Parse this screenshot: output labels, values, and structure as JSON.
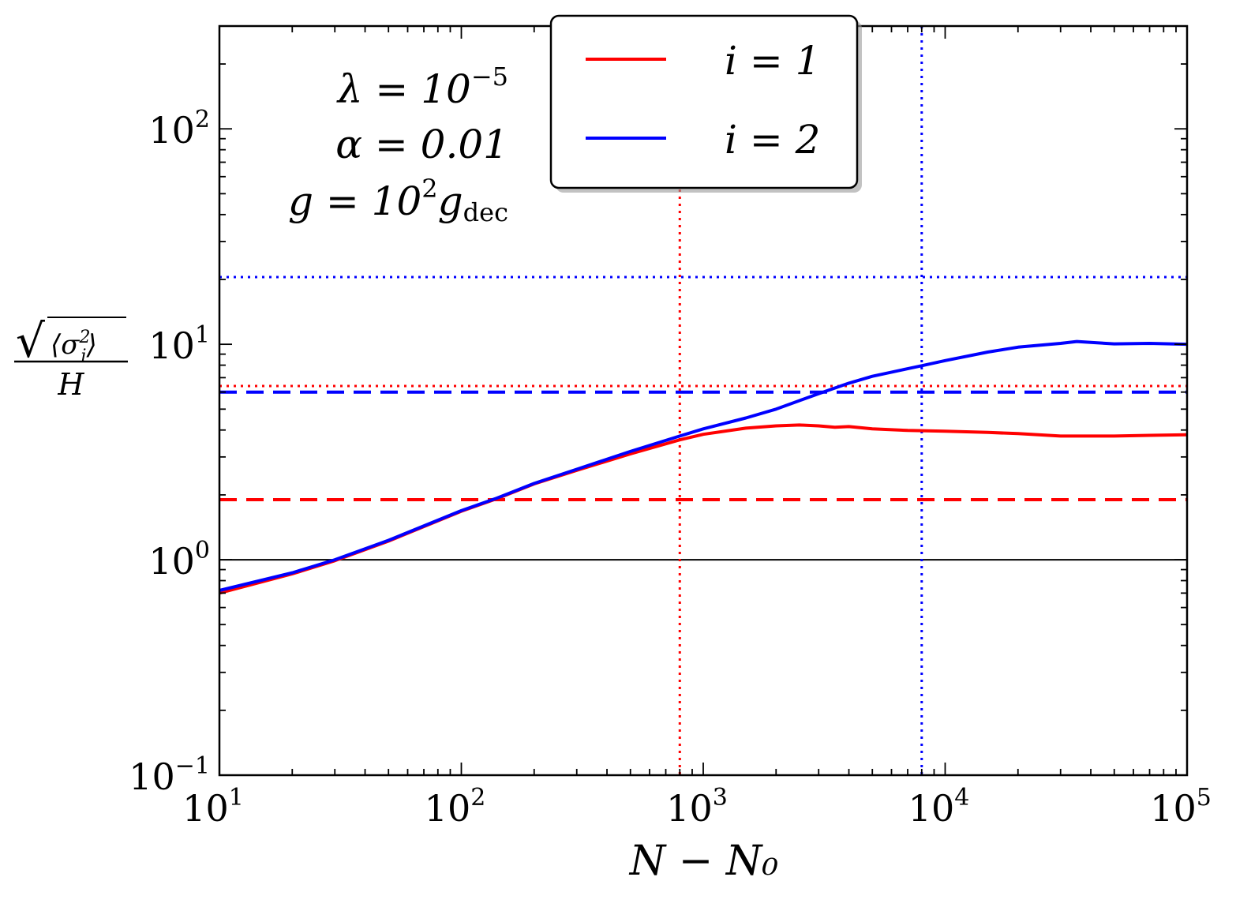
{
  "chart_data": {
    "type": "line",
    "xlabel": "N − N₀",
    "ylabel": "√⟨σᵢ²⟩ / H",
    "ylabel_parts": {
      "numerator_inner": "⟨σ",
      "sup": "2",
      "sub": "i",
      "close": "⟩",
      "denominator": "H"
    },
    "xscale": "log",
    "yscale": "log",
    "xlim": [
      10,
      100000
    ],
    "ylim": [
      0.1,
      300
    ],
    "grid": false,
    "legend_position": "top-center",
    "x_ticks": [
      {
        "value": 10,
        "base": "10",
        "exp": "1"
      },
      {
        "value": 100,
        "base": "10",
        "exp": "2"
      },
      {
        "value": 1000,
        "base": "10",
        "exp": "3"
      },
      {
        "value": 10000,
        "base": "10",
        "exp": "4"
      },
      {
        "value": 100000,
        "base": "10",
        "exp": "5"
      }
    ],
    "y_ticks": [
      {
        "value": 0.1,
        "base": "10",
        "exp": "−1"
      },
      {
        "value": 1,
        "base": "10",
        "exp": "0"
      },
      {
        "value": 10,
        "base": "10",
        "exp": "1"
      },
      {
        "value": 100,
        "base": "10",
        "exp": "2"
      }
    ],
    "annotations": [
      {
        "main": "λ = 10",
        "sup": "−5",
        "sub": ""
      },
      {
        "main": "α = 0.01",
        "sup": "",
        "sub": ""
      },
      {
        "main": "g = 10",
        "sup": "2",
        "tail": "g",
        "sub": "dec"
      }
    ],
    "series": [
      {
        "name": "i = 1",
        "color": "#ff0000",
        "x": [
          10,
          20,
          30,
          50,
          100,
          140,
          200,
          300,
          500,
          800,
          1000,
          1500,
          2000,
          2500,
          3000,
          3500,
          4000,
          5000,
          7000,
          10000,
          15000,
          20000,
          30000,
          50000,
          70000,
          100000
        ],
        "y": [
          0.7,
          0.86,
          0.99,
          1.22,
          1.68,
          1.92,
          2.25,
          2.6,
          3.1,
          3.6,
          3.82,
          4.08,
          4.18,
          4.22,
          4.18,
          4.12,
          4.15,
          4.05,
          3.98,
          3.95,
          3.9,
          3.85,
          3.75,
          3.75,
          3.78,
          3.8
        ]
      },
      {
        "name": "i = 2",
        "color": "#0000ff",
        "x": [
          10,
          20,
          30,
          50,
          100,
          140,
          200,
          300,
          500,
          800,
          1000,
          1500,
          2000,
          3000,
          4000,
          5000,
          7000,
          8000,
          10000,
          15000,
          20000,
          30000,
          35000,
          40000,
          50000,
          70000,
          100000
        ],
        "y": [
          0.72,
          0.87,
          1.0,
          1.23,
          1.69,
          1.93,
          2.26,
          2.63,
          3.18,
          3.75,
          4.05,
          4.55,
          5.0,
          5.9,
          6.6,
          7.1,
          7.7,
          7.95,
          8.4,
          9.2,
          9.7,
          10.1,
          10.3,
          10.2,
          10.05,
          10.1,
          10.0
        ]
      }
    ],
    "reference_lines": [
      {
        "orientation": "horizontal",
        "value": 1.0,
        "color": "#000000",
        "style": "solid"
      },
      {
        "orientation": "horizontal",
        "value": 1.9,
        "color": "#ff0000",
        "style": "dashed"
      },
      {
        "orientation": "horizontal",
        "value": 6.0,
        "color": "#0000ff",
        "style": "dashed"
      },
      {
        "orientation": "horizontal",
        "value": 6.4,
        "color": "#ff0000",
        "style": "dotted"
      },
      {
        "orientation": "horizontal",
        "value": 20.5,
        "color": "#0000ff",
        "style": "dotted"
      },
      {
        "orientation": "vertical",
        "value": 800,
        "color": "#ff0000",
        "style": "dotted"
      },
      {
        "orientation": "vertical",
        "value": 8000,
        "color": "#0000ff",
        "style": "dotted"
      }
    ]
  }
}
